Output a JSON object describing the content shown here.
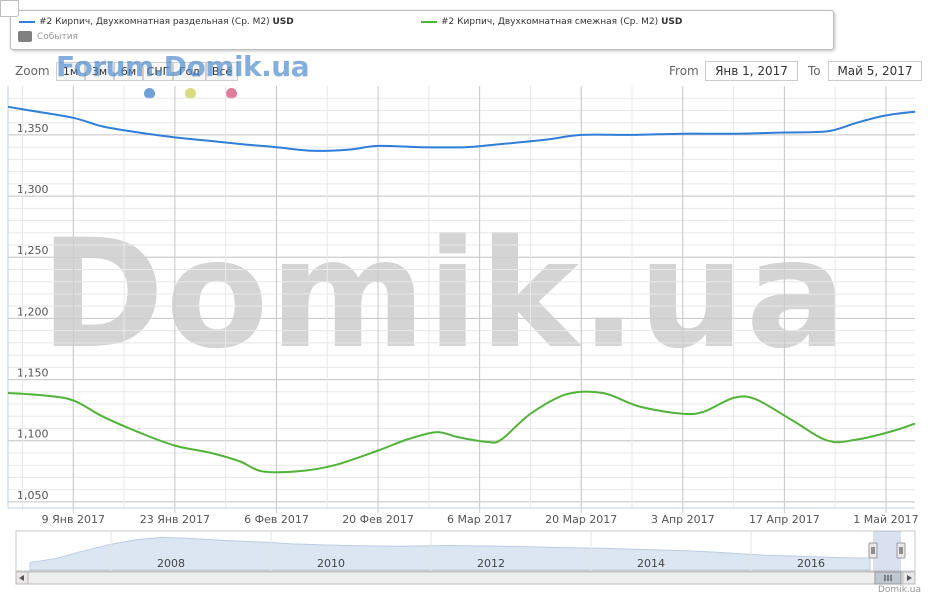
{
  "legend": {
    "series1_label": "#2 Кирпич, Двухкомнатная раздельная (Ср. М2)",
    "series1_unit": "USD",
    "series1_color": "#2f7ed8",
    "series2_label": "#2 Кирпич, Двухкомнатная смежная (Ср. М2)",
    "series2_unit": "USD",
    "series2_color": "#52b33a",
    "events_label": "События"
  },
  "zoom": {
    "label": "Zoom",
    "buttons": [
      "1м",
      "3м",
      "6м",
      "СНГ",
      "Год",
      "Всё"
    ]
  },
  "watermark_small": "Forum.Domik.ua",
  "watermark_big": "Domik.ua",
  "flag_dots": [
    "#6fa0d6",
    "#d9dc7c",
    "#de7f9a"
  ],
  "range": {
    "from_label": "From",
    "from_value": "Янв 1, 2017",
    "to_label": "To",
    "to_value": "Май 5, 2017"
  },
  "credit": "Domik.ua",
  "chart_data": {
    "type": "line",
    "xlim": [
      "2016-12-31",
      "2017-05-05"
    ],
    "ylim": [
      1045,
      1390
    ],
    "y_ticks": [
      1050,
      1100,
      1150,
      1200,
      1250,
      1300,
      1350
    ],
    "y_tick_labels": [
      "1,050",
      "1,100",
      "1,150",
      "1,200",
      "1,250",
      "1,300",
      "1,350"
    ],
    "x_ticks": [
      "2017-01-09",
      "2017-01-23",
      "2017-02-06",
      "2017-02-20",
      "2017-03-06",
      "2017-03-20",
      "2017-04-03",
      "2017-04-17",
      "2017-05-01"
    ],
    "x_tick_labels": [
      "9 Янв 2017",
      "23 Янв 2017",
      "6 Фев 2017",
      "20 Фев 2017",
      "6 Мар 2017",
      "20 Мар 2017",
      "3 Апр 2017",
      "17 Апр 2017",
      "1 Май 2017"
    ],
    "grid": true,
    "series": [
      {
        "name": "#2 Кирпич, Двухкомнатная раздельная (Ср. М2)",
        "color": "#2f7ed8",
        "points": [
          [
            "2016-12-31",
            1373
          ],
          [
            "2017-01-03",
            1370
          ],
          [
            "2017-01-09",
            1364
          ],
          [
            "2017-01-13",
            1357
          ],
          [
            "2017-01-18",
            1352
          ],
          [
            "2017-01-23",
            1348
          ],
          [
            "2017-01-28",
            1345
          ],
          [
            "2017-02-02",
            1342
          ],
          [
            "2017-02-06",
            1340
          ],
          [
            "2017-02-11",
            1337
          ],
          [
            "2017-02-16",
            1338
          ],
          [
            "2017-02-20",
            1341
          ],
          [
            "2017-02-26",
            1340
          ],
          [
            "2017-03-04",
            1340
          ],
          [
            "2017-03-08",
            1342
          ],
          [
            "2017-03-15",
            1346
          ],
          [
            "2017-03-20",
            1350
          ],
          [
            "2017-03-27",
            1350
          ],
          [
            "2017-04-03",
            1351
          ],
          [
            "2017-04-10",
            1351
          ],
          [
            "2017-04-17",
            1352
          ],
          [
            "2017-04-23",
            1353
          ],
          [
            "2017-04-27",
            1360
          ],
          [
            "2017-05-01",
            1366
          ],
          [
            "2017-05-05",
            1369
          ]
        ]
      },
      {
        "name": "#2 Кирпич, Двухкомнатная смежная (Ср. М2)",
        "color": "#52b33a",
        "points": [
          [
            "2016-12-31",
            1139
          ],
          [
            "2017-01-05",
            1137
          ],
          [
            "2017-01-09",
            1133
          ],
          [
            "2017-01-13",
            1120
          ],
          [
            "2017-01-18",
            1107
          ],
          [
            "2017-01-23",
            1096
          ],
          [
            "2017-01-28",
            1090
          ],
          [
            "2017-02-01",
            1083
          ],
          [
            "2017-02-04",
            1075
          ],
          [
            "2017-02-09",
            1075
          ],
          [
            "2017-02-14",
            1080
          ],
          [
            "2017-02-20",
            1092
          ],
          [
            "2017-02-24",
            1101
          ],
          [
            "2017-02-28",
            1107
          ],
          [
            "2017-03-03",
            1103
          ],
          [
            "2017-03-07",
            1099
          ],
          [
            "2017-03-09",
            1101
          ],
          [
            "2017-03-13",
            1122
          ],
          [
            "2017-03-18",
            1138
          ],
          [
            "2017-03-23",
            1139
          ],
          [
            "2017-03-28",
            1128
          ],
          [
            "2017-04-03",
            1122
          ],
          [
            "2017-04-06",
            1124
          ],
          [
            "2017-04-10",
            1135
          ],
          [
            "2017-04-13",
            1134
          ],
          [
            "2017-04-18",
            1117
          ],
          [
            "2017-04-23",
            1100
          ],
          [
            "2017-04-27",
            1101
          ],
          [
            "2017-05-02",
            1108
          ],
          [
            "2017-05-05",
            1114
          ]
        ]
      }
    ]
  },
  "navigator": {
    "year_labels": [
      "2008",
      "2010",
      "2012",
      "2014",
      "2016"
    ],
    "series": [
      1080,
      1130,
      1220,
      1300,
      1360,
      1390,
      1380,
      1360,
      1345,
      1330,
      1310,
      1300,
      1290,
      1285,
      1280,
      1285,
      1290,
      1285,
      1280,
      1275,
      1265,
      1260,
      1255,
      1245,
      1235,
      1225,
      1210,
      1190,
      1170,
      1160,
      1150,
      1140,
      1135
    ]
  }
}
